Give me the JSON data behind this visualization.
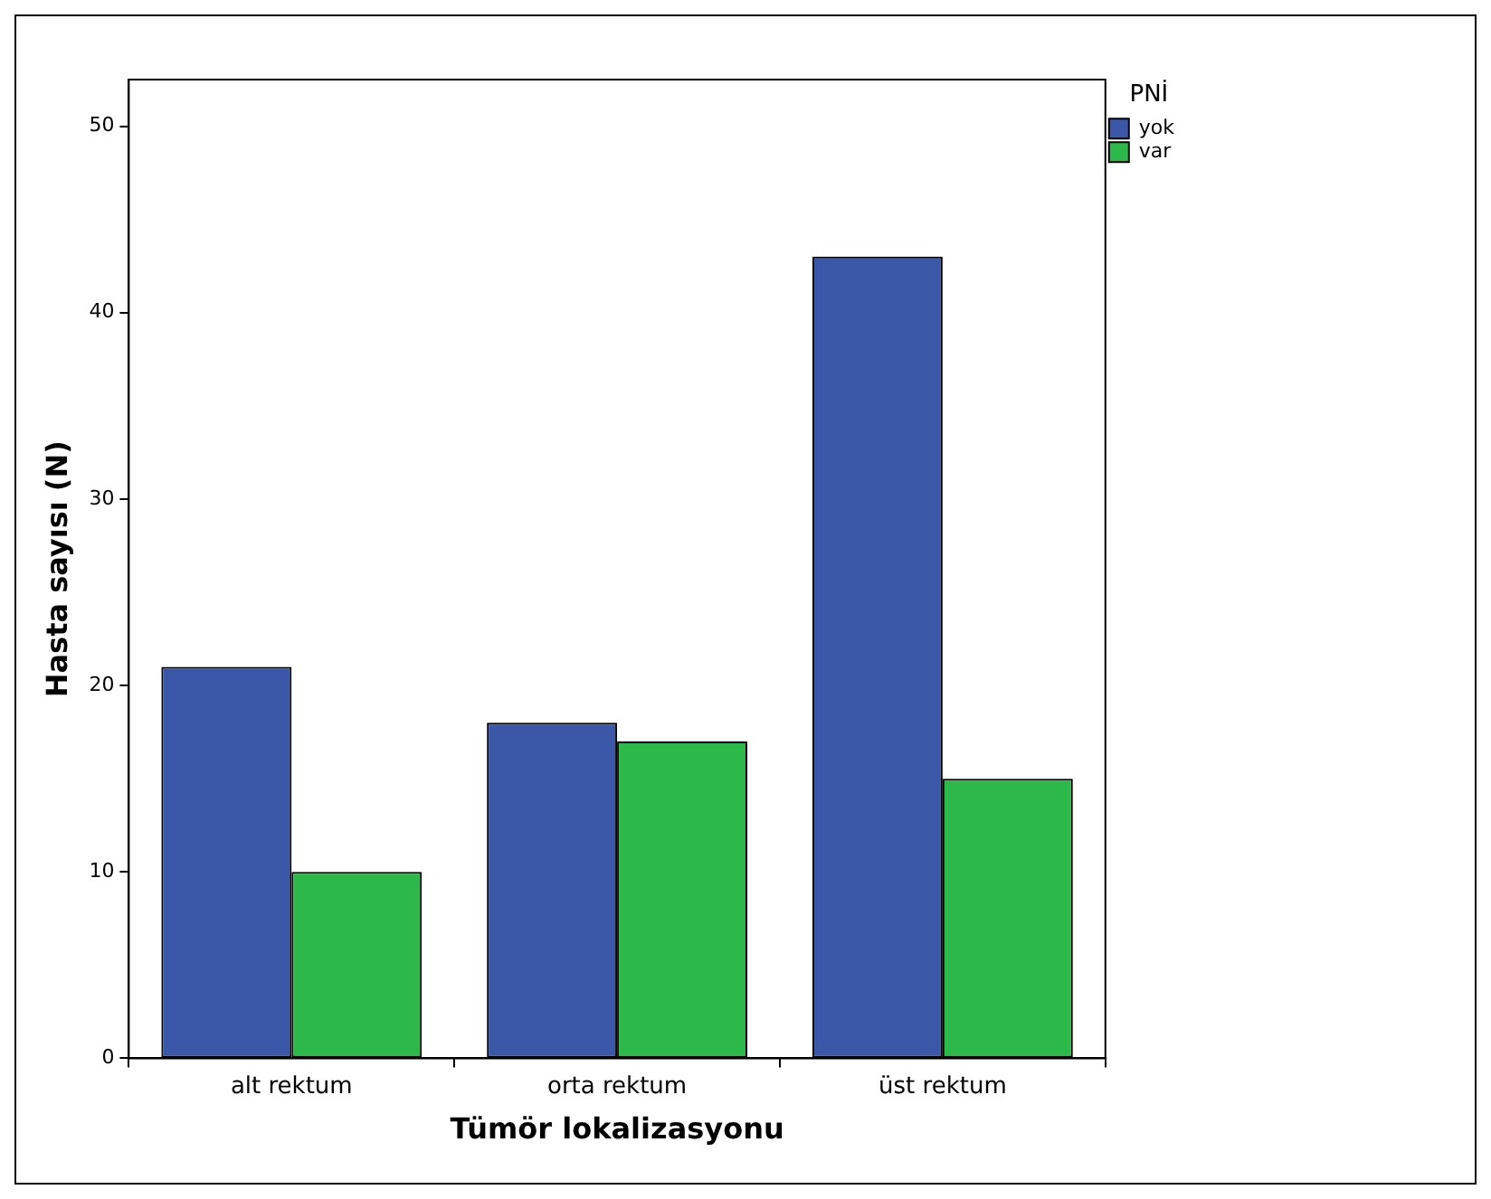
{
  "chart_data": {
    "type": "bar",
    "xlabel": "Tümör lokalizasyonu",
    "ylabel": "Hasta sayısı (N)",
    "legend_title": "PNİ",
    "categories": [
      "alt rektum",
      "orta rektum",
      "üst rektum"
    ],
    "series": [
      {
        "name": "yok",
        "color": "#3b57a8",
        "values": [
          21,
          18,
          43
        ]
      },
      {
        "name": "var",
        "color": "#2db84a",
        "values": [
          10,
          17,
          15
        ]
      }
    ],
    "ylim": [
      0,
      52.5
    ],
    "yticks": [
      0,
      10,
      20,
      30,
      40,
      50
    ],
    "grid": false,
    "legend": "top right"
  }
}
